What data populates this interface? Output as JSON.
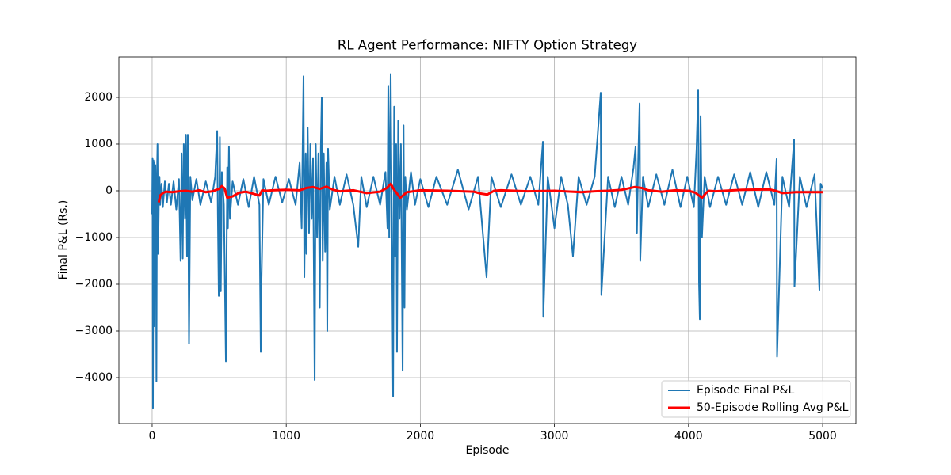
{
  "chart_data": {
    "type": "line",
    "title": "RL Agent Performance: NIFTY Option Strategy",
    "x_label": "Episode",
    "y_label": "Final P&L (Rs.)",
    "xlim": [
      -248,
      5248
    ],
    "ylim": [
      -4983,
      2864
    ],
    "xticks": [
      0,
      1000,
      2000,
      3000,
      4000,
      5000
    ],
    "yticks": [
      {
        "value": -4000,
        "label": "−4000"
      },
      {
        "value": -3000,
        "label": "−3000"
      },
      {
        "value": -2000,
        "label": "−2000"
      },
      {
        "value": -1000,
        "label": "−1000"
      },
      0,
      1000,
      2000
    ],
    "grid": true,
    "legend": "lower right",
    "series": [
      {
        "name": "Episode Final P&L",
        "color": "#1f77b4",
        "width": 2,
        "x": [
          0,
          3,
          6,
          10,
          13,
          16,
          20,
          24,
          28,
          32,
          36,
          40,
          45,
          50,
          55,
          60,
          70,
          80,
          95,
          110,
          125,
          140,
          160,
          180,
          200,
          212,
          220,
          228,
          236,
          245,
          252,
          260,
          266,
          270,
          275,
          285,
          300,
          330,
          360,
          400,
          440,
          470,
          485,
          490,
          497,
          505,
          512,
          520,
          535,
          550,
          560,
          565,
          573,
          580,
          600,
          640,
          680,
          720,
          760,
          800,
          810,
          815,
          830,
          870,
          920,
          970,
          1020,
          1070,
          1100,
          1115,
          1129,
          1135,
          1145,
          1150,
          1160,
          1170,
          1180,
          1190,
          1200,
          1212,
          1220,
          1230,
          1240,
          1250,
          1258,
          1265,
          1272,
          1280,
          1290,
          1300,
          1306,
          1312,
          1325,
          1360,
          1400,
          1450,
          1500,
          1537,
          1560,
          1600,
          1650,
          1700,
          1740,
          1755,
          1761,
          1768,
          1779,
          1790,
          1797,
          1805,
          1812,
          1820,
          1826,
          1835,
          1845,
          1855,
          1868,
          1875,
          1882,
          1888,
          1900,
          1930,
          1960,
          2000,
          2060,
          2120,
          2200,
          2280,
          2360,
          2430,
          2494,
          2530,
          2600,
          2680,
          2750,
          2820,
          2880,
          2914,
          2917,
          2950,
          3000,
          3050,
          3100,
          3138,
          3180,
          3240,
          3300,
          3345,
          3350,
          3400,
          3450,
          3500,
          3550,
          3590,
          3605,
          3615,
          3625,
          3635,
          3640,
          3660,
          3700,
          3760,
          3820,
          3880,
          3940,
          3990,
          4040,
          4060,
          4072,
          4078,
          4084,
          4090,
          4100,
          4120,
          4160,
          4220,
          4280,
          4340,
          4400,
          4460,
          4520,
          4580,
          4640,
          4657,
          4660,
          4700,
          4750,
          4787,
          4790,
          4830,
          4880,
          4940,
          4976,
          4985,
          5000
        ],
        "values": [
          -500,
          700,
          -4650,
          650,
          -2900,
          600,
          -1300,
          550,
          -600,
          -4080,
          300,
          1000,
          -1350,
          -200,
          300,
          -300,
          150,
          -350,
          200,
          -250,
          150,
          -300,
          200,
          -400,
          250,
          -1500,
          800,
          -1450,
          1000,
          -600,
          1200,
          -1400,
          1200,
          -500,
          -3270,
          300,
          -200,
          250,
          -300,
          200,
          -250,
          300,
          1280,
          -500,
          -2250,
          1150,
          -2150,
          400,
          -300,
          -3650,
          500,
          -800,
          940,
          -600,
          200,
          -300,
          250,
          -350,
          300,
          -300,
          -3450,
          -2000,
          250,
          -300,
          300,
          -250,
          250,
          -300,
          600,
          -800,
          2450,
          -1850,
          800,
          -1350,
          1350,
          -900,
          1000,
          -600,
          700,
          -4050,
          1000,
          -1000,
          800,
          -2500,
          900,
          2000,
          -1500,
          800,
          -1300,
          600,
          -3000,
          900,
          -400,
          300,
          -300,
          350,
          -300,
          -1200,
          300,
          -350,
          300,
          -300,
          400,
          -800,
          2250,
          -1000,
          2500,
          -1500,
          -4400,
          1800,
          -1400,
          1000,
          -3450,
          1500,
          -600,
          1000,
          -3850,
          1400,
          -2500,
          300,
          -400,
          400,
          -300,
          250,
          -350,
          300,
          -300,
          450,
          -400,
          300,
          -1850,
          300,
          -350,
          350,
          -300,
          300,
          -300,
          1050,
          -2700,
          300,
          -800,
          300,
          -300,
          -1400,
          300,
          -300,
          300,
          2100,
          -2230,
          300,
          -350,
          300,
          -300,
          500,
          950,
          -900,
          700,
          1870,
          -1500,
          300,
          -350,
          350,
          -300,
          450,
          -350,
          300,
          -350,
          900,
          2150,
          -1950,
          -2750,
          1600,
          -1000,
          300,
          -350,
          300,
          -300,
          350,
          -300,
          400,
          -350,
          400,
          -300,
          680,
          -3550,
          300,
          -350,
          1100,
          -2050,
          300,
          -350,
          350,
          -2120,
          150,
          50
        ]
      },
      {
        "name": "50-Episode Rolling Avg P&L",
        "color": "#ff0000",
        "width": 3,
        "x": [
          49,
          60,
          80,
          100,
          150,
          200,
          250,
          300,
          350,
          400,
          450,
          500,
          520,
          540,
          560,
          600,
          650,
          700,
          750,
          800,
          820,
          850,
          900,
          1000,
          1100,
          1150,
          1200,
          1250,
          1300,
          1350,
          1400,
          1500,
          1600,
          1700,
          1750,
          1780,
          1800,
          1850,
          1900,
          2000,
          2200,
          2400,
          2450,
          2500,
          2550,
          2600,
          2800,
          3000,
          3200,
          3300,
          3400,
          3500,
          3600,
          3650,
          3700,
          3800,
          3900,
          4000,
          4050,
          4100,
          4130,
          4150,
          4200,
          4400,
          4600,
          4650,
          4700,
          4800,
          5000
        ],
        "values": [
          -250,
          -100,
          -50,
          -20,
          -30,
          -10,
          0,
          -20,
          10,
          -30,
          -10,
          40,
          100,
          50,
          -150,
          -120,
          -40,
          -20,
          -60,
          -100,
          10,
          0,
          10,
          20,
          10,
          60,
          80,
          40,
          90,
          20,
          -10,
          10,
          -50,
          -20,
          60,
          150,
          40,
          -150,
          -30,
          10,
          0,
          -20,
          -60,
          -80,
          0,
          10,
          -10,
          0,
          -30,
          -10,
          0,
          20,
          80,
          60,
          10,
          -20,
          10,
          0,
          -40,
          -150,
          -50,
          0,
          -10,
          20,
          30,
          0,
          -50,
          -30,
          -30
        ]
      }
    ]
  }
}
